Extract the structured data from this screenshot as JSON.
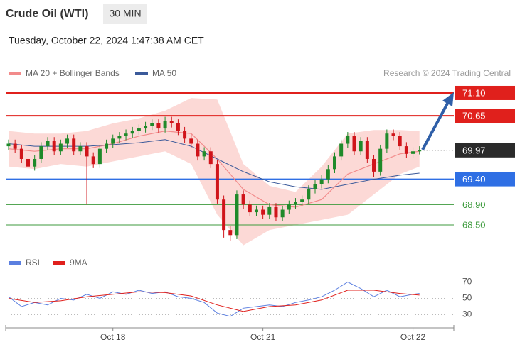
{
  "chart_data": {
    "type": "candlestick",
    "title": "Crude Oil (WTI)",
    "interval": "30 MIN",
    "subtitle": "Tuesday, October 22, 2024 1:47:38 AM CET",
    "source": "Research © 2024 Trading Central",
    "up_color": "#1f8a2a",
    "down_color": "#d0141a",
    "categories": [
      null,
      null,
      null,
      null,
      null,
      null,
      null,
      null,
      null,
      null,
      null,
      null,
      null,
      null,
      null,
      null,
      "Oct 18",
      null,
      null,
      null,
      null,
      null,
      null,
      null,
      null,
      null,
      null,
      null,
      null,
      null,
      null,
      null,
      null,
      null,
      null,
      null,
      null,
      null,
      null,
      "Oct 21",
      null,
      null,
      null,
      null,
      null,
      null,
      null,
      null,
      null,
      null,
      null,
      null,
      null,
      null,
      null,
      null,
      null,
      null,
      null,
      null,
      null,
      null,
      "Oct 22",
      null
    ],
    "ylim": [
      68.1,
      71.6
    ],
    "open": [
      70.05,
      70.1,
      70.0,
      69.8,
      69.65,
      69.8,
      70.05,
      70.15,
      69.95,
      70.1,
      70.2,
      69.95,
      70.05,
      69.85,
      69.7,
      70.0,
      70.1,
      70.2,
      70.25,
      70.3,
      70.35,
      70.4,
      70.45,
      70.5,
      70.4,
      70.55,
      70.5,
      70.35,
      70.2,
      70.1,
      69.85,
      69.95,
      69.7,
      69.0,
      68.4,
      68.3,
      69.1,
      68.9,
      68.75,
      68.8,
      68.7,
      68.85,
      68.65,
      68.8,
      68.9,
      68.95,
      69.0,
      69.2,
      69.3,
      69.4,
      69.6,
      69.85,
      70.1,
      70.25,
      69.95,
      70.15,
      69.8,
      69.55,
      70.0,
      70.3,
      70.25,
      70.05,
      69.9,
      69.95
    ],
    "high": [
      70.18,
      70.18,
      70.08,
      69.88,
      69.88,
      70.13,
      70.23,
      70.23,
      70.18,
      70.28,
      70.28,
      70.13,
      70.13,
      69.93,
      70.08,
      70.18,
      70.28,
      70.33,
      70.38,
      70.43,
      70.48,
      70.53,
      70.58,
      70.58,
      70.63,
      70.63,
      70.58,
      70.43,
      70.28,
      70.18,
      70.03,
      70.03,
      69.78,
      69.08,
      68.48,
      69.18,
      69.18,
      68.98,
      68.88,
      68.88,
      68.93,
      68.93,
      68.88,
      68.98,
      69.03,
      69.08,
      69.28,
      69.38,
      69.48,
      69.68,
      69.93,
      70.18,
      70.33,
      70.33,
      70.23,
      70.23,
      69.88,
      70.08,
      70.38,
      70.38,
      70.33,
      70.13,
      70.03,
      70.05
    ],
    "low": [
      69.97,
      69.92,
      69.72,
      69.57,
      69.57,
      69.72,
      69.97,
      69.87,
      69.87,
      70.02,
      69.87,
      69.87,
      68.9,
      69.62,
      69.62,
      69.92,
      70.02,
      70.12,
      70.17,
      70.22,
      70.27,
      70.32,
      70.37,
      70.32,
      70.32,
      70.42,
      70.27,
      70.12,
      70.02,
      69.77,
      69.77,
      69.62,
      68.92,
      68.25,
      68.18,
      68.22,
      68.82,
      68.67,
      68.67,
      68.62,
      68.62,
      68.57,
      68.57,
      68.72,
      68.82,
      68.87,
      68.92,
      69.12,
      69.22,
      69.32,
      69.52,
      69.77,
      70.02,
      69.87,
      69.87,
      69.72,
      69.45,
      69.47,
      69.92,
      70.17,
      69.97,
      69.82,
      69.82,
      69.89
    ],
    "close": [
      70.1,
      70.0,
      69.8,
      69.65,
      69.8,
      70.05,
      70.15,
      69.95,
      70.1,
      70.2,
      69.95,
      70.05,
      69.85,
      69.7,
      70.0,
      70.1,
      70.2,
      70.25,
      70.3,
      70.35,
      70.4,
      70.45,
      70.5,
      70.4,
      70.55,
      70.5,
      70.35,
      70.2,
      70.1,
      69.85,
      69.95,
      69.7,
      69.0,
      68.4,
      68.3,
      69.1,
      68.9,
      68.75,
      68.8,
      68.7,
      68.85,
      68.65,
      68.8,
      68.9,
      68.95,
      69.0,
      69.2,
      69.3,
      69.4,
      69.6,
      69.85,
      70.1,
      70.25,
      69.95,
      70.15,
      69.8,
      69.55,
      70.0,
      70.3,
      70.25,
      70.05,
      69.9,
      69.95,
      69.97
    ],
    "series": [
      {
        "name": "MA 20 + Bollinger Bands",
        "color": "#f28b8b",
        "band_color": "#fcd9d6",
        "x": [
          0,
          4,
          8,
          12,
          16,
          20,
          24,
          28,
          32,
          36,
          40,
          44,
          48,
          52,
          56,
          60,
          63
        ],
        "values": [
          70.0,
          69.95,
          70.0,
          70.0,
          70.1,
          70.25,
          70.35,
          70.3,
          69.8,
          69.2,
          68.9,
          68.85,
          69.0,
          69.5,
          69.7,
          69.9,
          69.95
        ],
        "upper": [
          70.35,
          70.3,
          70.3,
          70.35,
          70.5,
          70.6,
          70.75,
          71.0,
          70.97,
          69.7,
          69.27,
          69.15,
          69.65,
          70.3,
          70.37,
          70.37,
          70.35
        ],
        "lower": [
          69.65,
          69.6,
          69.7,
          69.65,
          69.75,
          69.85,
          69.95,
          69.7,
          68.7,
          68.1,
          68.4,
          68.5,
          68.6,
          68.7,
          69.1,
          69.5,
          69.65
        ]
      },
      {
        "name": "MA 50",
        "color": "#3b5a9a",
        "x": [
          0,
          4,
          8,
          12,
          16,
          20,
          24,
          28,
          32,
          36,
          40,
          44,
          48,
          52,
          56,
          60,
          63
        ],
        "values": [
          70.1,
          70.05,
          70.05,
          70.05,
          70.08,
          70.12,
          70.18,
          70.05,
          69.8,
          69.55,
          69.35,
          69.25,
          69.2,
          69.3,
          69.4,
          69.48,
          69.52
        ]
      }
    ],
    "levels": [
      {
        "value": 71.1,
        "label": "71.10",
        "color": "#e0201c",
        "box": true
      },
      {
        "value": 70.65,
        "label": "70.65",
        "color": "#e0201c",
        "box": true
      },
      {
        "value": 69.97,
        "label": "69.97",
        "color": "#2b2b2b",
        "box": true,
        "dotted": true
      },
      {
        "value": 69.4,
        "label": "69.40",
        "color": "#2f6fe4",
        "box": true
      },
      {
        "value": 68.9,
        "label": "68.90",
        "color": "#3c9a3c",
        "box": false
      },
      {
        "value": 68.5,
        "label": "68.50",
        "color": "#3c9a3c",
        "box": false
      }
    ],
    "rsi": {
      "ylim": [
        20,
        80
      ],
      "yticks": [
        70,
        50,
        30
      ],
      "series": [
        {
          "name": "RSI",
          "color": "#5b7fe0",
          "x": [
            0,
            2,
            4,
            6,
            8,
            10,
            12,
            14,
            16,
            18,
            20,
            22,
            24,
            26,
            28,
            30,
            32,
            34,
            36,
            38,
            40,
            42,
            44,
            46,
            48,
            50,
            52,
            54,
            56,
            58,
            60,
            62,
            63
          ],
          "values": [
            52,
            40,
            45,
            42,
            50,
            48,
            55,
            50,
            58,
            55,
            60,
            56,
            58,
            52,
            50,
            45,
            32,
            28,
            38,
            40,
            42,
            40,
            45,
            48,
            52,
            60,
            70,
            62,
            52,
            60,
            52,
            55,
            56
          ]
        },
        {
          "name": "9MA",
          "color": "#e0201c",
          "x": [
            0,
            4,
            8,
            12,
            16,
            20,
            24,
            28,
            32,
            36,
            40,
            44,
            48,
            52,
            56,
            60,
            63
          ],
          "values": [
            50,
            45,
            47,
            52,
            55,
            58,
            57,
            53,
            42,
            34,
            40,
            42,
            48,
            60,
            60,
            56,
            54
          ]
        }
      ]
    }
  }
}
